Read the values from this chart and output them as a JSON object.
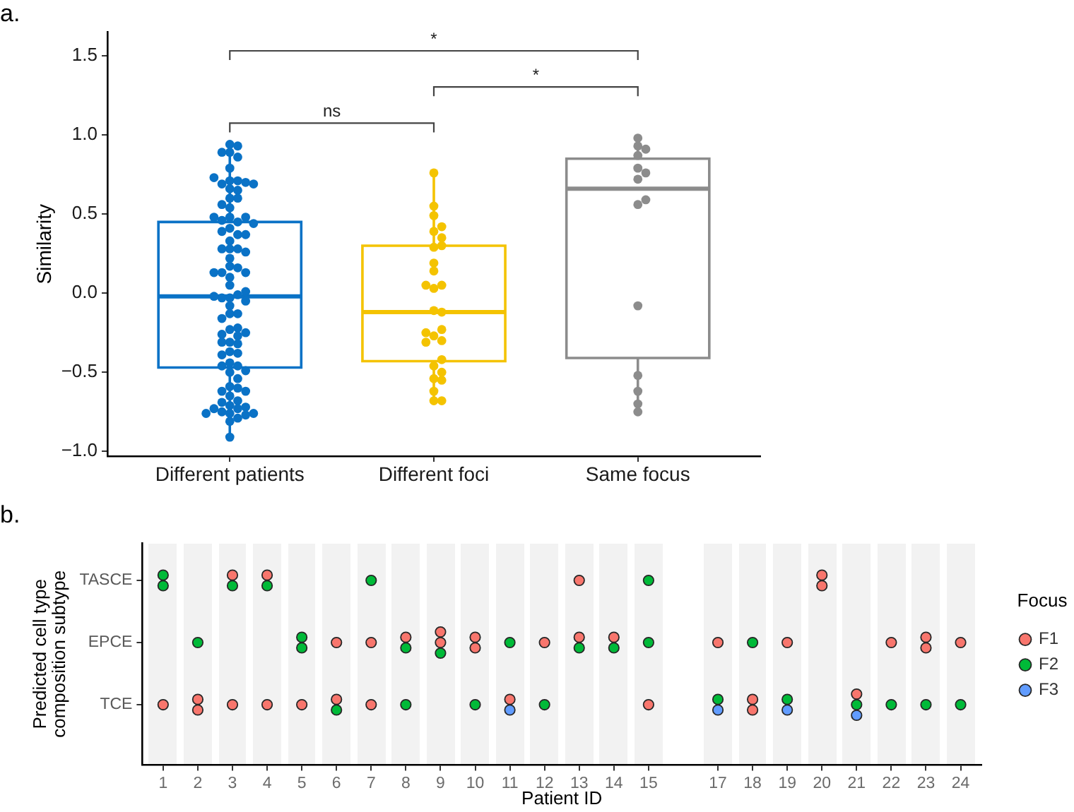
{
  "chart_data": [
    {
      "type": "box",
      "title": "a.",
      "ylabel": "Similarity",
      "categories": [
        "Different patients",
        "Different foci",
        "Same focus"
      ],
      "boxes": [
        {
          "low": -0.91,
          "q1": -0.47,
          "median": -0.02,
          "q3": 0.45,
          "high": 0.94
        },
        {
          "low": -0.68,
          "q1": -0.43,
          "median": -0.12,
          "q3": 0.3,
          "high": 0.76
        },
        {
          "low": -0.75,
          "q1": -0.41,
          "median": 0.66,
          "q3": 0.85,
          "high": 0.98
        }
      ],
      "colors": [
        "#0a72c6",
        "#f4c300",
        "#8c8c8c"
      ],
      "series": [
        {
          "type": "scatter",
          "color": "#0a72c6",
          "x": [
            "Different patients",
            "Different patients",
            "Different patients",
            "Different patients",
            "Different patients",
            "Different patients",
            "Different patients",
            "Different patients",
            "Different patients",
            "Different patients",
            "Different patients",
            "Different patients",
            "Different patients",
            "Different patients",
            "Different patients",
            "Different patients",
            "Different patients",
            "Different patients",
            "Different patients",
            "Different patients",
            "Different patients",
            "Different patients",
            "Different patients",
            "Different patients",
            "Different patients",
            "Different patients",
            "Different patients",
            "Different patients",
            "Different patients",
            "Different patients",
            "Different patients",
            "Different patients",
            "Different patients",
            "Different patients",
            "Different patients",
            "Different patients",
            "Different patients",
            "Different patients",
            "Different patients",
            "Different patients",
            "Different patients",
            "Different patients",
            "Different patients",
            "Different patients",
            "Different patients",
            "Different patients",
            "Different patients",
            "Different patients",
            "Different patients",
            "Different patients",
            "Different patients",
            "Different patients",
            "Different patients",
            "Different patients",
            "Different patients",
            "Different patients",
            "Different patients",
            "Different patients",
            "Different patients",
            "Different patients",
            "Different patients",
            "Different patients",
            "Different patients",
            "Different patients",
            "Different patients",
            "Different patients",
            "Different patients",
            "Different patients",
            "Different patients",
            "Different patients",
            "Different patients",
            "Different patients",
            "Different patients",
            "Different patients",
            "Different patients",
            "Different patients",
            "Different patients",
            "Different patients",
            "Different patients",
            "Different patients",
            "Different patients",
            "Different patients",
            "Different patients",
            "Different patients",
            "Different patients",
            "Different patients",
            "Different patients"
          ],
          "values": [
            0.94,
            0.93,
            0.89,
            0.89,
            0.86,
            0.79,
            0.71,
            0.71,
            0.69,
            0.7,
            0.73,
            0.69,
            0.66,
            0.65,
            0.6,
            0.6,
            0.56,
            0.54,
            0.48,
            0.45,
            0.46,
            0.48,
            0.48,
            0.44,
            0.41,
            0.37,
            0.39,
            0.37,
            0.33,
            0.28,
            0.28,
            0.28,
            0.26,
            0.22,
            0.17,
            0.16,
            0.13,
            0.13,
            0.13,
            0.1,
            0.05,
            -0.03,
            -0.01,
            -0.03,
            0.01,
            -0.02,
            -0.05,
            -0.08,
            -0.13,
            -0.13,
            -0.16,
            -0.23,
            -0.22,
            -0.26,
            -0.25,
            -0.27,
            -0.31,
            -0.31,
            -0.32,
            -0.37,
            -0.38,
            -0.39,
            -0.44,
            -0.46,
            -0.46,
            -0.5,
            -0.49,
            -0.54,
            -0.59,
            -0.6,
            -0.62,
            -0.62,
            -0.65,
            -0.68,
            -0.69,
            -0.71,
            -0.72,
            -0.73,
            -0.75,
            -0.76,
            -0.73,
            -0.76,
            -0.77,
            -0.76,
            -0.79,
            -0.81,
            -0.91
          ]
        },
        {
          "type": "scatter",
          "color": "#f4c300",
          "x": [
            "Different foci",
            "Different foci",
            "Different foci",
            "Different foci",
            "Different foci",
            "Different foci",
            "Different foci",
            "Different foci",
            "Different foci",
            "Different foci",
            "Different foci",
            "Different foci",
            "Different foci",
            "Different foci",
            "Different foci",
            "Different foci",
            "Different foci",
            "Different foci",
            "Different foci",
            "Different foci",
            "Different foci",
            "Different foci",
            "Different foci",
            "Different foci",
            "Different foci",
            "Different foci",
            "Different foci",
            "Different foci"
          ],
          "values": [
            0.76,
            0.55,
            0.49,
            0.39,
            0.42,
            0.35,
            0.29,
            0.3,
            0.19,
            0.14,
            0.03,
            0.05,
            0.05,
            -0.11,
            -0.12,
            -0.27,
            -0.23,
            -0.3,
            -0.25,
            -0.31,
            -0.46,
            -0.42,
            -0.5,
            -0.54,
            -0.55,
            -0.62,
            -0.68,
            -0.68
          ]
        },
        {
          "type": "scatter",
          "color": "#8c8c8c",
          "x": [
            "Same focus",
            "Same focus",
            "Same focus",
            "Same focus",
            "Same focus",
            "Same focus",
            "Same focus",
            "Same focus",
            "Same focus",
            "Same focus",
            "Same focus",
            "Same focus",
            "Same focus",
            "Same focus"
          ],
          "values": [
            0.93,
            0.98,
            0.91,
            0.87,
            0.79,
            0.72,
            0.76,
            0.56,
            0.59,
            -0.08,
            -0.52,
            -0.62,
            -0.7,
            -0.75
          ]
        }
      ],
      "ylim": [
        -1.03,
        1.65
      ],
      "yticks": [
        {
          "value": -1,
          "label": "−1.0"
        },
        {
          "value": -0.5,
          "label": "−0.5"
        },
        {
          "value": 0,
          "label": "0.0"
        },
        0.5,
        {
          "value": 1,
          "label": "1.0"
        },
        1.5
      ],
      "annotations": [
        "*",
        "*",
        "ns"
      ],
      "marker": "circle"
    },
    {
      "type": "scatter",
      "orientation": "horizontal",
      "title": "b.",
      "xlabel": "Patient ID",
      "ylabel": "Predicted cell type\ncomposition subtype",
      "categories": [
        "TASCE",
        "EPCE",
        "TCE"
      ],
      "series": [
        {
          "name": "F1",
          "color": "#f8766d",
          "x": [
            "TCE",
            "TCE",
            "TCE",
            "TASCE",
            "TCE",
            "TASCE",
            "TCE",
            "TCE",
            "EPCE",
            "TCE",
            "EPCE",
            "TCE",
            "EPCE",
            "EPCE",
            "EPCE",
            "EPCE",
            "EPCE",
            "TCE",
            "EPCE",
            "TASCE",
            "EPCE",
            "EPCE",
            "TCE",
            "EPCE",
            "TCE",
            "TCE",
            "EPCE",
            "TASCE",
            "TASCE",
            "TCE",
            "EPCE",
            "EPCE",
            "EPCE",
            "EPCE"
          ],
          "values": [
            1,
            2,
            2,
            3,
            3,
            4,
            4,
            5,
            6,
            6,
            7,
            7,
            8,
            9,
            9,
            10,
            10,
            11,
            12,
            13,
            13,
            14,
            15,
            17,
            18,
            18,
            19,
            20,
            20,
            21,
            22,
            23,
            23,
            24
          ]
        },
        {
          "name": "F2",
          "color": "#00ba38",
          "x": [
            "TASCE",
            "TASCE",
            "EPCE",
            "TASCE",
            "TASCE",
            "EPCE",
            "EPCE",
            "TCE",
            "TASCE",
            "EPCE",
            "TCE",
            "EPCE",
            "TCE",
            "EPCE",
            "TCE",
            "EPCE",
            "EPCE",
            "TASCE",
            "EPCE",
            "TCE",
            "EPCE",
            "TCE",
            "TCE",
            "TCE",
            "TCE",
            "TCE"
          ],
          "values": [
            1,
            1,
            2,
            3,
            4,
            5,
            5,
            6,
            7,
            8,
            8,
            9,
            10,
            11,
            12,
            13,
            14,
            15,
            15,
            17,
            18,
            19,
            21,
            22,
            23,
            24
          ]
        },
        {
          "name": "F3",
          "color": "#619cff",
          "x": [
            "TCE",
            "TCE",
            "TCE",
            "TCE"
          ],
          "values": [
            11,
            17,
            19,
            21
          ]
        }
      ],
      "xlim": [
        0.4,
        24.6
      ],
      "xticks": [
        1,
        2,
        3,
        4,
        5,
        6,
        7,
        8,
        9,
        10,
        11,
        12,
        13,
        14,
        15,
        17,
        18,
        19,
        20,
        21,
        22,
        23,
        24
      ],
      "legend": "right",
      "legend_title": "Focus",
      "marker": "circle"
    }
  ]
}
